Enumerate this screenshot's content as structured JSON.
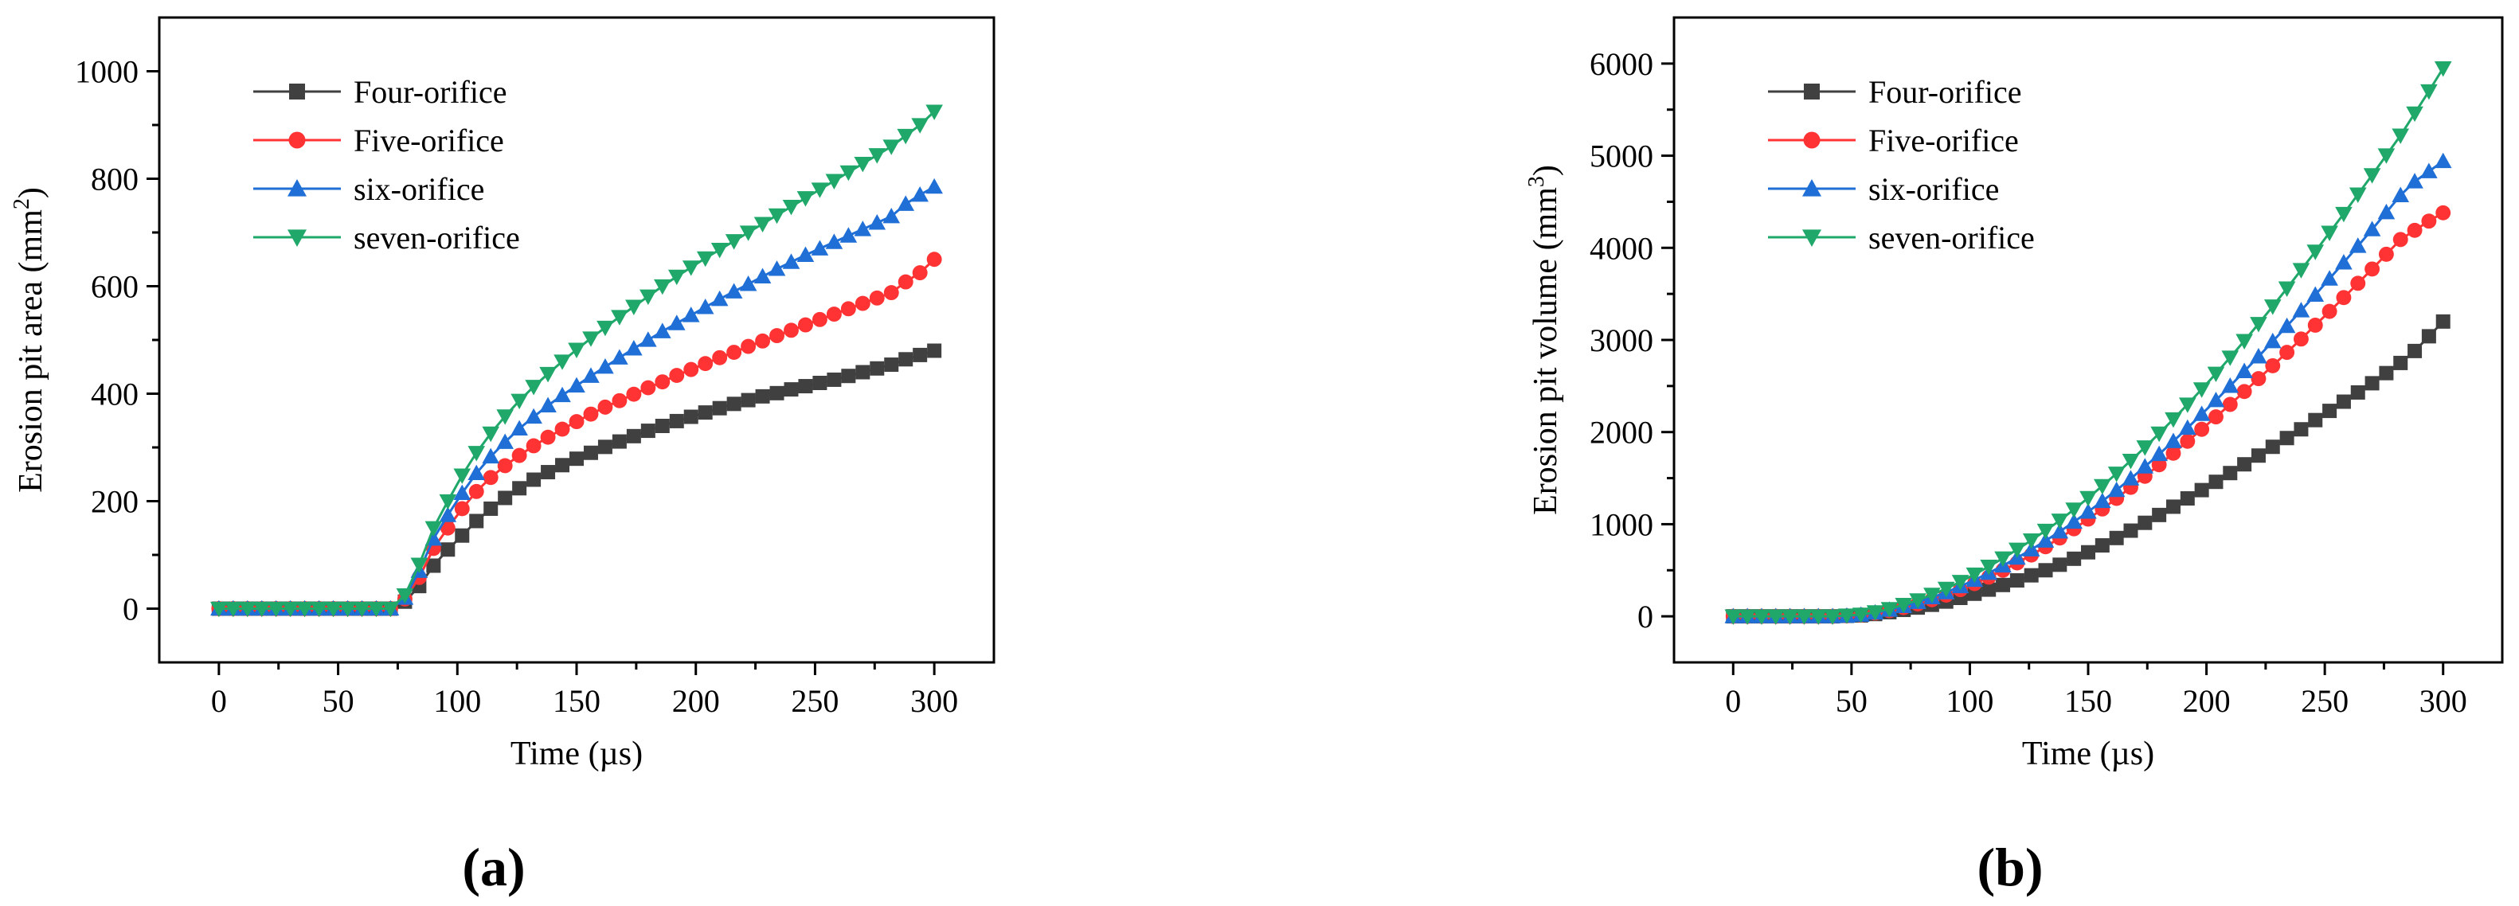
{
  "chart_data": [
    {
      "type": "line",
      "panel_label": "(a)",
      "xlabel": "Time (µs)",
      "ylabel_main": "Erosion pit area (mm",
      "ylabel_sup": "2",
      "ylabel_tail": ")",
      "xlim": [
        -25,
        325
      ],
      "ylim": [
        -100,
        1100
      ],
      "xticks": [
        "0",
        "50",
        "100",
        "150",
        "200",
        "250",
        "300"
      ],
      "yticks": [
        "0",
        "200",
        "400",
        "600",
        "800",
        "1000"
      ],
      "legend_placement": "top-left",
      "x": [
        0,
        6,
        12,
        18,
        24,
        30,
        36,
        42,
        48,
        54,
        60,
        66,
        72,
        78,
        84,
        90,
        96,
        102,
        108,
        114,
        120,
        126,
        132,
        138,
        144,
        150,
        156,
        162,
        168,
        174,
        180,
        186,
        192,
        198,
        204,
        210,
        216,
        222,
        228,
        234,
        240,
        246,
        252,
        258,
        264,
        270,
        276,
        282,
        288,
        294,
        300
      ],
      "series": [
        {
          "name": "Four-orifice",
          "color": "#404040",
          "marker": "square",
          "values": [
            0,
            0,
            0,
            0,
            0,
            0,
            0,
            0,
            0,
            0,
            0,
            0,
            0,
            13,
            42,
            80,
            110,
            136,
            163,
            186,
            206,
            224,
            240,
            254,
            267,
            279,
            290,
            301,
            311,
            321,
            331,
            340,
            349,
            357,
            365,
            373,
            381,
            388,
            395,
            401,
            408,
            414,
            420,
            426,
            433,
            440,
            447,
            454,
            464,
            472,
            480
          ]
        },
        {
          "name": "Five-orifice",
          "color": "#ff3333",
          "marker": "circle",
          "values": [
            0,
            0,
            0,
            0,
            0,
            0,
            0,
            0,
            0,
            0,
            0,
            0,
            0,
            18,
            58,
            112,
            150,
            186,
            218,
            244,
            266,
            285,
            303,
            319,
            334,
            348,
            362,
            375,
            387,
            399,
            411,
            422,
            434,
            445,
            456,
            467,
            477,
            488,
            498,
            508,
            518,
            528,
            538,
            548,
            558,
            568,
            578,
            588,
            608,
            625,
            650
          ]
        },
        {
          "name": "six-orifice",
          "color": "#1f6fd6",
          "marker": "triangle-up",
          "values": [
            0,
            0,
            0,
            0,
            0,
            0,
            0,
            0,
            0,
            0,
            0,
            0,
            0,
            20,
            70,
            130,
            174,
            215,
            252,
            283,
            310,
            335,
            357,
            378,
            397,
            415,
            433,
            450,
            467,
            484,
            500,
            516,
            531,
            546,
            561,
            576,
            590,
            604,
            618,
            632,
            645,
            658,
            670,
            682,
            694,
            706,
            718,
            730,
            753,
            770,
            785
          ]
        },
        {
          "name": "seven-orifice",
          "color": "#1fa86a",
          "marker": "triangle-down",
          "values": [
            0,
            0,
            0,
            0,
            0,
            0,
            0,
            0,
            0,
            0,
            0,
            0,
            0,
            25,
            82,
            150,
            200,
            248,
            290,
            326,
            358,
            387,
            413,
            437,
            460,
            482,
            503,
            523,
            543,
            562,
            581,
            600,
            618,
            635,
            652,
            668,
            684,
            700,
            716,
            732,
            748,
            764,
            780,
            796,
            812,
            828,
            844,
            860,
            880,
            900,
            925
          ]
        }
      ]
    },
    {
      "type": "line",
      "panel_label": "(b)",
      "xlabel": "Time (µs)",
      "ylabel_main": "Erosion pit volume (mm",
      "ylabel_sup": "3",
      "ylabel_tail": ")",
      "xlim": [
        -25,
        325
      ],
      "ylim": [
        -500,
        6500
      ],
      "xticks": [
        "0",
        "50",
        "100",
        "150",
        "200",
        "250",
        "300"
      ],
      "yticks": [
        "0",
        "1000",
        "2000",
        "3000",
        "4000",
        "5000",
        "6000"
      ],
      "legend_placement": "top-left",
      "x": [
        0,
        6,
        12,
        18,
        24,
        30,
        36,
        42,
        48,
        54,
        60,
        66,
        72,
        78,
        84,
        90,
        96,
        102,
        108,
        114,
        120,
        126,
        132,
        138,
        144,
        150,
        156,
        162,
        168,
        174,
        180,
        186,
        192,
        198,
        204,
        210,
        216,
        222,
        228,
        234,
        240,
        246,
        252,
        258,
        264,
        270,
        276,
        282,
        288,
        294,
        300
      ],
      "series": [
        {
          "name": "Four-orifice",
          "color": "#404040",
          "marker": "square",
          "values": [
            0,
            0,
            0,
            0,
            0,
            0,
            0,
            0,
            5,
            10,
            25,
            45,
            70,
            95,
            125,
            160,
            200,
            245,
            290,
            340,
            390,
            445,
            500,
            560,
            625,
            695,
            770,
            850,
            930,
            1015,
            1100,
            1190,
            1280,
            1370,
            1460,
            1555,
            1650,
            1745,
            1840,
            1935,
            2030,
            2130,
            2230,
            2330,
            2430,
            2530,
            2640,
            2750,
            2880,
            3040,
            3200
          ]
        },
        {
          "name": "Five-orifice",
          "color": "#ff3333",
          "marker": "circle",
          "values": [
            0,
            0,
            0,
            0,
            0,
            0,
            0,
            0,
            5,
            15,
            35,
            60,
            95,
            135,
            180,
            230,
            290,
            355,
            425,
            500,
            580,
            665,
            755,
            850,
            950,
            1055,
            1165,
            1280,
            1400,
            1520,
            1645,
            1770,
            1900,
            2030,
            2165,
            2300,
            2440,
            2580,
            2720,
            2865,
            3010,
            3160,
            3310,
            3460,
            3615,
            3770,
            3930,
            4090,
            4190,
            4290,
            4380
          ]
        },
        {
          "name": "six-orifice",
          "color": "#1f6fd6",
          "marker": "triangle-up",
          "values": [
            0,
            0,
            0,
            0,
            0,
            0,
            0,
            0,
            5,
            15,
            40,
            70,
            110,
            155,
            205,
            260,
            325,
            395,
            470,
            550,
            635,
            725,
            820,
            920,
            1025,
            1135,
            1250,
            1370,
            1495,
            1625,
            1760,
            1900,
            2045,
            2195,
            2345,
            2500,
            2660,
            2820,
            2985,
            3150,
            3320,
            3490,
            3665,
            3840,
            4020,
            4200,
            4385,
            4570,
            4720,
            4830,
            4940
          ]
        },
        {
          "name": "seven-orifice",
          "color": "#1fa86a",
          "marker": "triangle-down",
          "values": [
            0,
            0,
            0,
            0,
            0,
            0,
            0,
            0,
            10,
            20,
            45,
            80,
            125,
            175,
            235,
            300,
            375,
            455,
            540,
            630,
            725,
            825,
            930,
            1040,
            1160,
            1285,
            1415,
            1550,
            1690,
            1835,
            1985,
            2140,
            2300,
            2465,
            2635,
            2810,
            2990,
            3175,
            3365,
            3560,
            3760,
            3960,
            4165,
            4370,
            4580,
            4790,
            5005,
            5220,
            5460,
            5700,
            5950
          ]
        }
      ]
    }
  ]
}
